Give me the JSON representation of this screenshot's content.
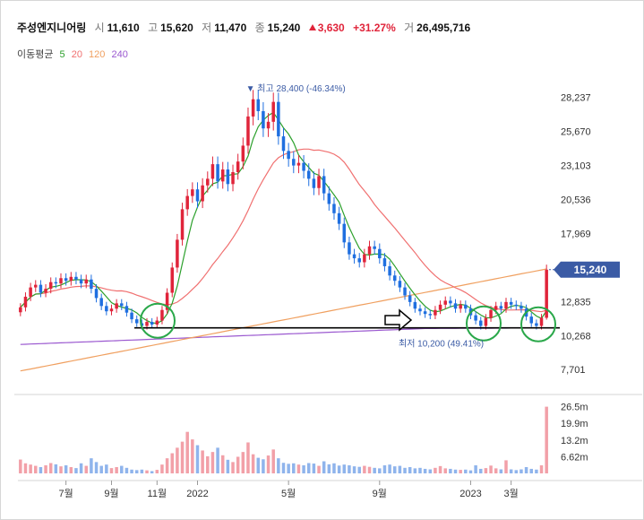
{
  "header": {
    "name": "주성엔지니어링",
    "open_label": "시",
    "open": "11,610",
    "high_label": "고",
    "high": "15,620",
    "low_label": "저",
    "low": "11,470",
    "close_label": "종",
    "close": "15,240",
    "change": "3,630",
    "change_pct": "+31.27%",
    "volume_label": "거",
    "volume": "26,495,716"
  },
  "ma_legend": {
    "label": "이동평균",
    "periods": [
      {
        "text": "5",
        "color": "#2ca02c"
      },
      {
        "text": "20",
        "color": "#f07070"
      },
      {
        "text": "120",
        "color": "#f0a060"
      },
      {
        "text": "240",
        "color": "#9b59d0"
      }
    ]
  },
  "colors": {
    "up": "#e0243a",
    "down": "#1f6fe0",
    "badge": "#3b5ba5",
    "circle": "#2aa84a"
  },
  "chart_data": {
    "type": "candlestick",
    "price_axis": {
      "ticks": [
        "28,237",
        "25,670",
        "23,103",
        "20,536",
        "17,969",
        "15,402",
        "12,835",
        "10,268",
        "7,701"
      ],
      "range": [
        6500,
        29500
      ]
    },
    "volume_axis": {
      "ticks": [
        "26.5m",
        "19.9m",
        "13.2m",
        "6.62m"
      ],
      "range": [
        0,
        28.5
      ]
    },
    "x_ticks": [
      {
        "label": "7월",
        "index": 9
      },
      {
        "label": "9월",
        "index": 18
      },
      {
        "label": "11월",
        "index": 27
      },
      {
        "label": "2022",
        "index": 35
      },
      {
        "label": "5월",
        "index": 53
      },
      {
        "label": "9월",
        "index": 71
      },
      {
        "label": "2023",
        "index": 89
      },
      {
        "label": "3월",
        "index": 97
      }
    ],
    "last_price": {
      "text": "15,240",
      "value": 15240
    },
    "max_marker": {
      "label": "최고",
      "value": "28,400",
      "pct": "(-46.34%)"
    },
    "min_marker": {
      "label": "최저",
      "value": "10,200",
      "pct": "(49.41%)"
    },
    "support_level": 10850,
    "close": [
      12400,
      13200,
      13900,
      14100,
      13500,
      13800,
      14300,
      14200,
      14600,
      14400,
      14700,
      14500,
      14200,
      14500,
      13800,
      13100,
      12500,
      12100,
      12300,
      12700,
      12500,
      12000,
      11500,
      11200,
      11000,
      11300,
      11100,
      11400,
      12200,
      13500,
      15400,
      17500,
      19800,
      20800,
      21300,
      20400,
      21600,
      22100,
      23200,
      21900,
      22800,
      21700,
      22600,
      23400,
      24600,
      26800,
      28100,
      27200,
      25900,
      26400,
      27900,
      25300,
      24200,
      23600,
      23100,
      23300,
      22700,
      22100,
      21400,
      22300,
      21000,
      20200,
      19500,
      18700,
      17300,
      16400,
      16100,
      15800,
      16400,
      17000,
      16800,
      16100,
      15500,
      14800,
      14400,
      13900,
      13300,
      12800,
      12300,
      12100,
      11900,
      11800,
      12200,
      12600,
      12900,
      12700,
      12300,
      12600,
      12300,
      11800,
      11400,
      11000,
      11600,
      12200,
      12500,
      12300,
      12800,
      12600,
      12500,
      12300,
      11700,
      11200,
      11000,
      11610,
      15240
    ],
    "volume_m": [
      5.5,
      4.0,
      3.5,
      3.0,
      2.5,
      3.2,
      4.1,
      3.6,
      2.8,
      3.2,
      2.5,
      2.1,
      4.0,
      3.0,
      6.0,
      4.5,
      3.0,
      3.5,
      2.1,
      2.5,
      3.0,
      2.2,
      1.5,
      1.3,
      1.5,
      1.2,
      0.9,
      1.4,
      3.5,
      6.0,
      8.0,
      10.2,
      12.6,
      16.5,
      13.5,
      11.2,
      9.1,
      6.8,
      8.5,
      10.2,
      7.2,
      5.4,
      4.5,
      6.6,
      8.5,
      12.3,
      7.6,
      6.2,
      5.6,
      7.1,
      9.5,
      6.0,
      4.2,
      3.8,
      4.0,
      3.5,
      3.2,
      4.1,
      3.9,
      3.0,
      4.8,
      3.6,
      4.0,
      3.1,
      3.5,
      3.2,
      2.8,
      2.6,
      3.0,
      2.6,
      2.2,
      2.0,
      3.2,
      3.5,
      2.8,
      3.0,
      2.2,
      2.5,
      2.0,
      2.2,
      1.8,
      1.6,
      2.2,
      2.9,
      2.0,
      1.8,
      1.5,
      1.4,
      1.5,
      1.2,
      3.2,
      1.8,
      2.1,
      3.1,
      2.0,
      1.6,
      5.2,
      1.6,
      1.3,
      1.6,
      2.5,
      1.8,
      1.5,
      3.2,
      26.5
    ]
  }
}
